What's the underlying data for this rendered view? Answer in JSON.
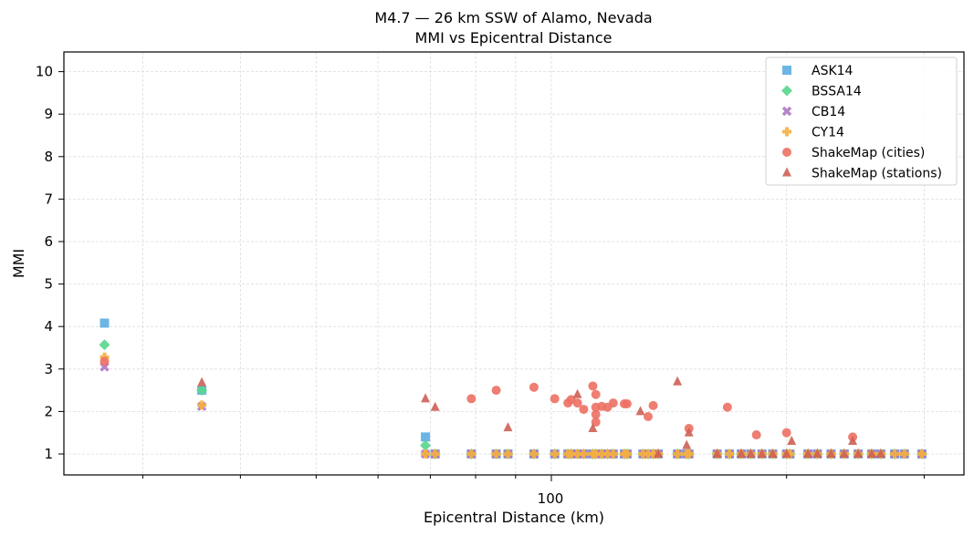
{
  "chart_data": {
    "type": "scatter",
    "title": "M4.7 — 26 km SSW of Alamo, Nevada",
    "subtitle": "MMI vs Epicentral Distance",
    "xlabel": "Epicentral Distance (km)",
    "ylabel": "MMI",
    "xscale": "log",
    "xlim": [
      24,
      337
    ],
    "ylim": [
      0.5,
      10.5
    ],
    "xticks_major": [
      100
    ],
    "xticks_minor": [
      30,
      40,
      50,
      60,
      70,
      80,
      90,
      200,
      300
    ],
    "yticks": [
      1,
      2,
      3,
      4,
      5,
      6,
      7,
      8,
      9,
      10
    ],
    "grid": true,
    "legend_position": "upper right",
    "colors": {
      "ASK14": "#5DADE2",
      "BSSA14": "#58D68D",
      "CB14": "#AF7AC5",
      "CY14": "#F5B041",
      "ShakeMap (cities)": "#EC7063",
      "ShakeMap (stations)": "#CD6155"
    },
    "series": [
      {
        "name": "ASK14",
        "marker": "square",
        "points": [
          [
            26.8,
            4.08
          ],
          [
            35.7,
            2.5
          ],
          [
            69,
            1.4
          ]
        ],
        "baseline_points_x": [
          71,
          79,
          85,
          88,
          95,
          101,
          105,
          106,
          108,
          110,
          113,
          114,
          116,
          118,
          120,
          124,
          125,
          131,
          133,
          135,
          137,
          145,
          149,
          150,
          163,
          169,
          175,
          180,
          186,
          192,
          200,
          202,
          213,
          219,
          228,
          237,
          247,
          257,
          264,
          275,
          283,
          298
        ],
        "baseline_value": 1.0
      },
      {
        "name": "BSSA14",
        "marker": "diamond",
        "points": [
          [
            26.8,
            3.57
          ],
          [
            35.7,
            2.5
          ],
          [
            69,
            1.2
          ]
        ],
        "baseline_value": 1.0
      },
      {
        "name": "CB14",
        "marker": "x",
        "points": [
          [
            26.8,
            3.05
          ],
          [
            35.7,
            2.12
          ],
          [
            69,
            1.0
          ]
        ],
        "baseline_value": 1.0
      },
      {
        "name": "CY14",
        "marker": "plus",
        "points": [
          [
            26.8,
            3.28
          ],
          [
            35.7,
            2.15
          ],
          [
            69,
            1.0
          ]
        ],
        "baseline_value": 1.0
      },
      {
        "name": "ShakeMap (cities)",
        "marker": "circle",
        "points": [
          [
            26.8,
            3.18
          ],
          [
            79,
            2.3
          ],
          [
            85,
            2.5
          ],
          [
            95,
            2.57
          ],
          [
            101,
            2.3
          ],
          [
            105,
            2.2
          ],
          [
            106,
            2.28
          ],
          [
            108,
            2.2
          ],
          [
            110,
            2.05
          ],
          [
            113,
            2.6
          ],
          [
            114,
            2.4
          ],
          [
            114,
            2.1
          ],
          [
            114,
            1.93
          ],
          [
            114,
            1.75
          ],
          [
            116,
            2.12
          ],
          [
            118,
            2.1
          ],
          [
            120,
            2.2
          ],
          [
            124,
            2.18
          ],
          [
            125,
            2.18
          ],
          [
            133,
            1.88
          ],
          [
            135,
            2.14
          ],
          [
            150,
            1.6
          ],
          [
            168,
            2.1
          ],
          [
            183,
            1.45
          ],
          [
            200,
            1.5
          ],
          [
            243,
            1.4
          ]
        ]
      },
      {
        "name": "ShakeMap (stations)",
        "marker": "triangle",
        "points": [
          [
            35.7,
            2.68
          ],
          [
            69,
            2.3
          ],
          [
            71,
            2.1
          ],
          [
            88,
            1.62
          ],
          [
            108,
            2.4
          ],
          [
            113,
            1.6
          ],
          [
            130,
            2.0
          ],
          [
            137,
            1.0
          ],
          [
            145,
            2.7
          ],
          [
            149,
            1.2
          ],
          [
            150,
            1.5
          ],
          [
            163,
            1.0
          ],
          [
            175,
            1.0
          ],
          [
            180,
            1.0
          ],
          [
            186,
            1.0
          ],
          [
            192,
            1.0
          ],
          [
            200,
            1.0
          ],
          [
            203,
            1.3
          ],
          [
            213,
            1.0
          ],
          [
            219,
            1.0
          ],
          [
            228,
            1.0
          ],
          [
            237,
            1.0
          ],
          [
            243,
            1.3
          ],
          [
            247,
            1.0
          ],
          [
            257,
            1.0
          ],
          [
            264,
            1.0
          ]
        ]
      }
    ]
  },
  "header": {
    "title": "M4.7 — 26 km SSW of Alamo, Nevada",
    "subtitle": "MMI vs Epicentral Distance"
  },
  "axes": {
    "xlabel": "Epicentral Distance (km)",
    "ylabel": "MMI",
    "x_major_tick_label": "100",
    "y_tick_labels": [
      "1",
      "2",
      "3",
      "4",
      "5",
      "6",
      "7",
      "8",
      "9",
      "10"
    ]
  },
  "legend": {
    "items": [
      {
        "label": "ASK14",
        "icon": "square-marker-icon",
        "color": "#5DADE2"
      },
      {
        "label": "BSSA14",
        "icon": "diamond-marker-icon",
        "color": "#58D68D"
      },
      {
        "label": "CB14",
        "icon": "x-marker-icon",
        "color": "#AF7AC5"
      },
      {
        "label": "CY14",
        "icon": "plus-marker-icon",
        "color": "#F5B041"
      },
      {
        "label": "ShakeMap (cities)",
        "icon": "circle-marker-icon",
        "color": "#EC7063"
      },
      {
        "label": "ShakeMap (stations)",
        "icon": "triangle-marker-icon",
        "color": "#CD6155"
      }
    ]
  }
}
